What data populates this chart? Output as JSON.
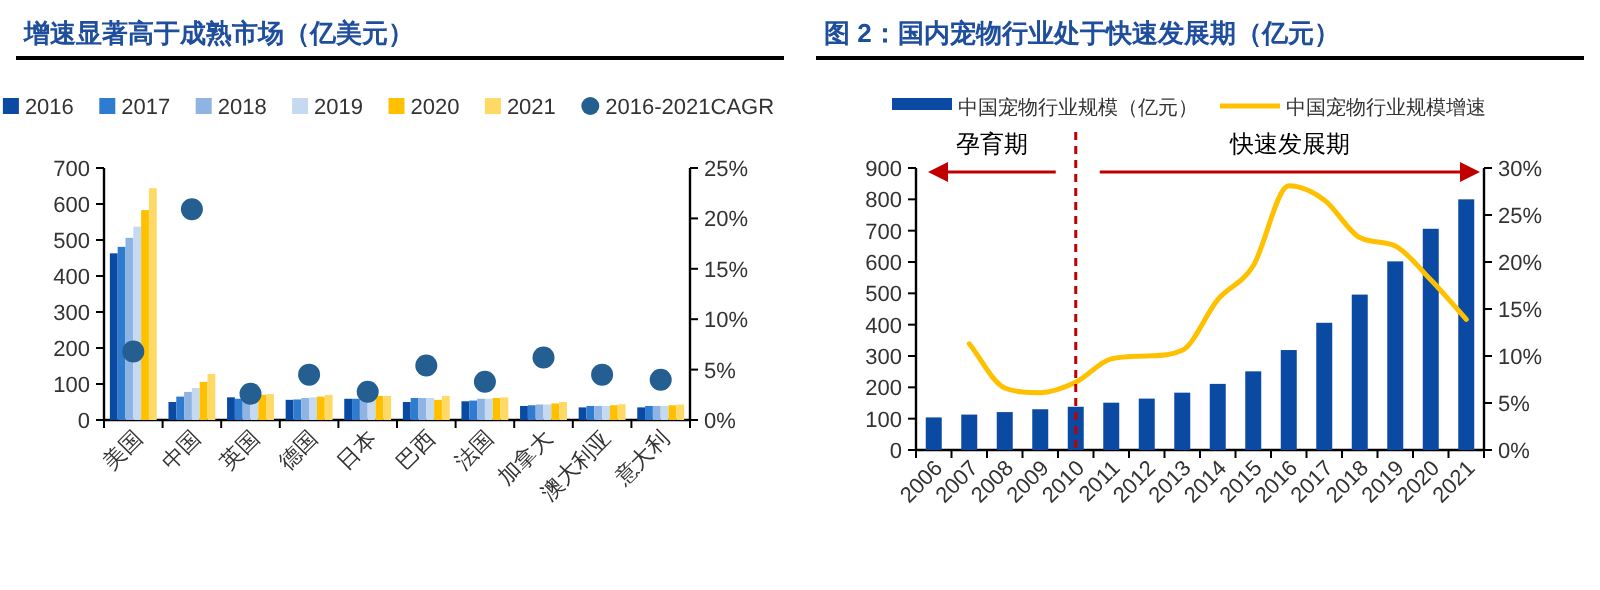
{
  "chart_data": [
    {
      "type": "bar",
      "title": "增速显著高于成熟市场（亿美元）",
      "categories": [
        "美国",
        "中国",
        "英国",
        "德国",
        "日本",
        "巴西",
        "法国",
        "加拿大",
        "澳大利亚",
        "意大利"
      ],
      "series": [
        {
          "name": "2016",
          "color": "#0b4aa2",
          "values": [
            463,
            50,
            63,
            56,
            59,
            50,
            52,
            39,
            35,
            35
          ]
        },
        {
          "name": "2017",
          "color": "#2e7bcf",
          "values": [
            481,
            65,
            59,
            57,
            59,
            61,
            54,
            41,
            39,
            39
          ]
        },
        {
          "name": "2018",
          "color": "#8fb4e3",
          "values": [
            506,
            78,
            56,
            61,
            57,
            61,
            59,
            43,
            39,
            39
          ]
        },
        {
          "name": "2019",
          "color": "#c5d9f1",
          "values": [
            537,
            89,
            57,
            63,
            59,
            61,
            59,
            43,
            39,
            39
          ]
        },
        {
          "name": "2020",
          "color": "#ffc000",
          "values": [
            583,
            106,
            70,
            65,
            67,
            56,
            61,
            46,
            41,
            41
          ]
        },
        {
          "name": "2021",
          "color": "#ffd966",
          "values": [
            644,
            128,
            72,
            70,
            67,
            67,
            63,
            50,
            44,
            43
          ]
        },
        {
          "name": "2016-2021CAGR",
          "type": "scatter",
          "axis": "y2",
          "color": "#255e91",
          "values": [
            6.8,
            20.9,
            2.6,
            4.5,
            2.8,
            5.4,
            3.8,
            6.2,
            4.5,
            4.0
          ]
        }
      ],
      "ylim": [
        0,
        700
      ],
      "yticks": [
        0,
        100,
        200,
        300,
        400,
        500,
        600,
        700
      ],
      "y2lim": [
        0,
        25
      ],
      "y2ticks": [
        {
          "value": 0,
          "label": "0%"
        },
        {
          "value": 5,
          "label": "5%"
        },
        {
          "value": 10,
          "label": "10%"
        },
        {
          "value": 15,
          "label": "15%"
        },
        {
          "value": 20,
          "label": "20%"
        },
        {
          "value": 25,
          "label": "25%"
        }
      ],
      "legend": "top",
      "grid": false
    },
    {
      "type": "bar",
      "title": "图 2：国内宠物行业处于快速发展期（亿元）",
      "categories": [
        "2006",
        "2007",
        "2008",
        "2009",
        "2010",
        "2011",
        "2012",
        "2013",
        "2014",
        "2015",
        "2016",
        "2017",
        "2018",
        "2019",
        "2020",
        "2021"
      ],
      "series": [
        {
          "name": "中国宠物行业规模（亿元）",
          "color": "#0b4aa2",
          "values": [
            104,
            113,
            121,
            130,
            138,
            151,
            164,
            183,
            211,
            251,
            319,
            406,
            496,
            602,
            706,
            800
          ]
        },
        {
          "name": "中国宠物行业规模增速",
          "type": "line",
          "axis": "y2",
          "color": "#ffc000",
          "values": [
            null,
            11.3,
            6.6,
            6.1,
            7.2,
            9.7,
            10.0,
            10.6,
            16.0,
            19.6,
            28.1,
            26.6,
            22.6,
            21.7,
            18.1,
            13.9
          ]
        }
      ],
      "ylim": [
        0,
        900
      ],
      "yticks": [
        0,
        100,
        200,
        300,
        400,
        500,
        600,
        700,
        800,
        900
      ],
      "y2lim": [
        0,
        30
      ],
      "y2ticks": [
        {
          "value": 0,
          "label": "0%"
        },
        {
          "value": 5,
          "label": "5%"
        },
        {
          "value": 10,
          "label": "10%"
        },
        {
          "value": 15,
          "label": "15%"
        },
        {
          "value": 20,
          "label": "20%"
        },
        {
          "value": 25,
          "label": "25%"
        },
        {
          "value": 30,
          "label": "30%"
        }
      ],
      "ref_lines": [
        {
          "axis": "x",
          "value": "2010",
          "color": "#c00000",
          "line_style": "dashed"
        }
      ],
      "annotations": [
        "孕育期",
        "快速发展期"
      ],
      "legend": "top",
      "grid": false
    }
  ]
}
